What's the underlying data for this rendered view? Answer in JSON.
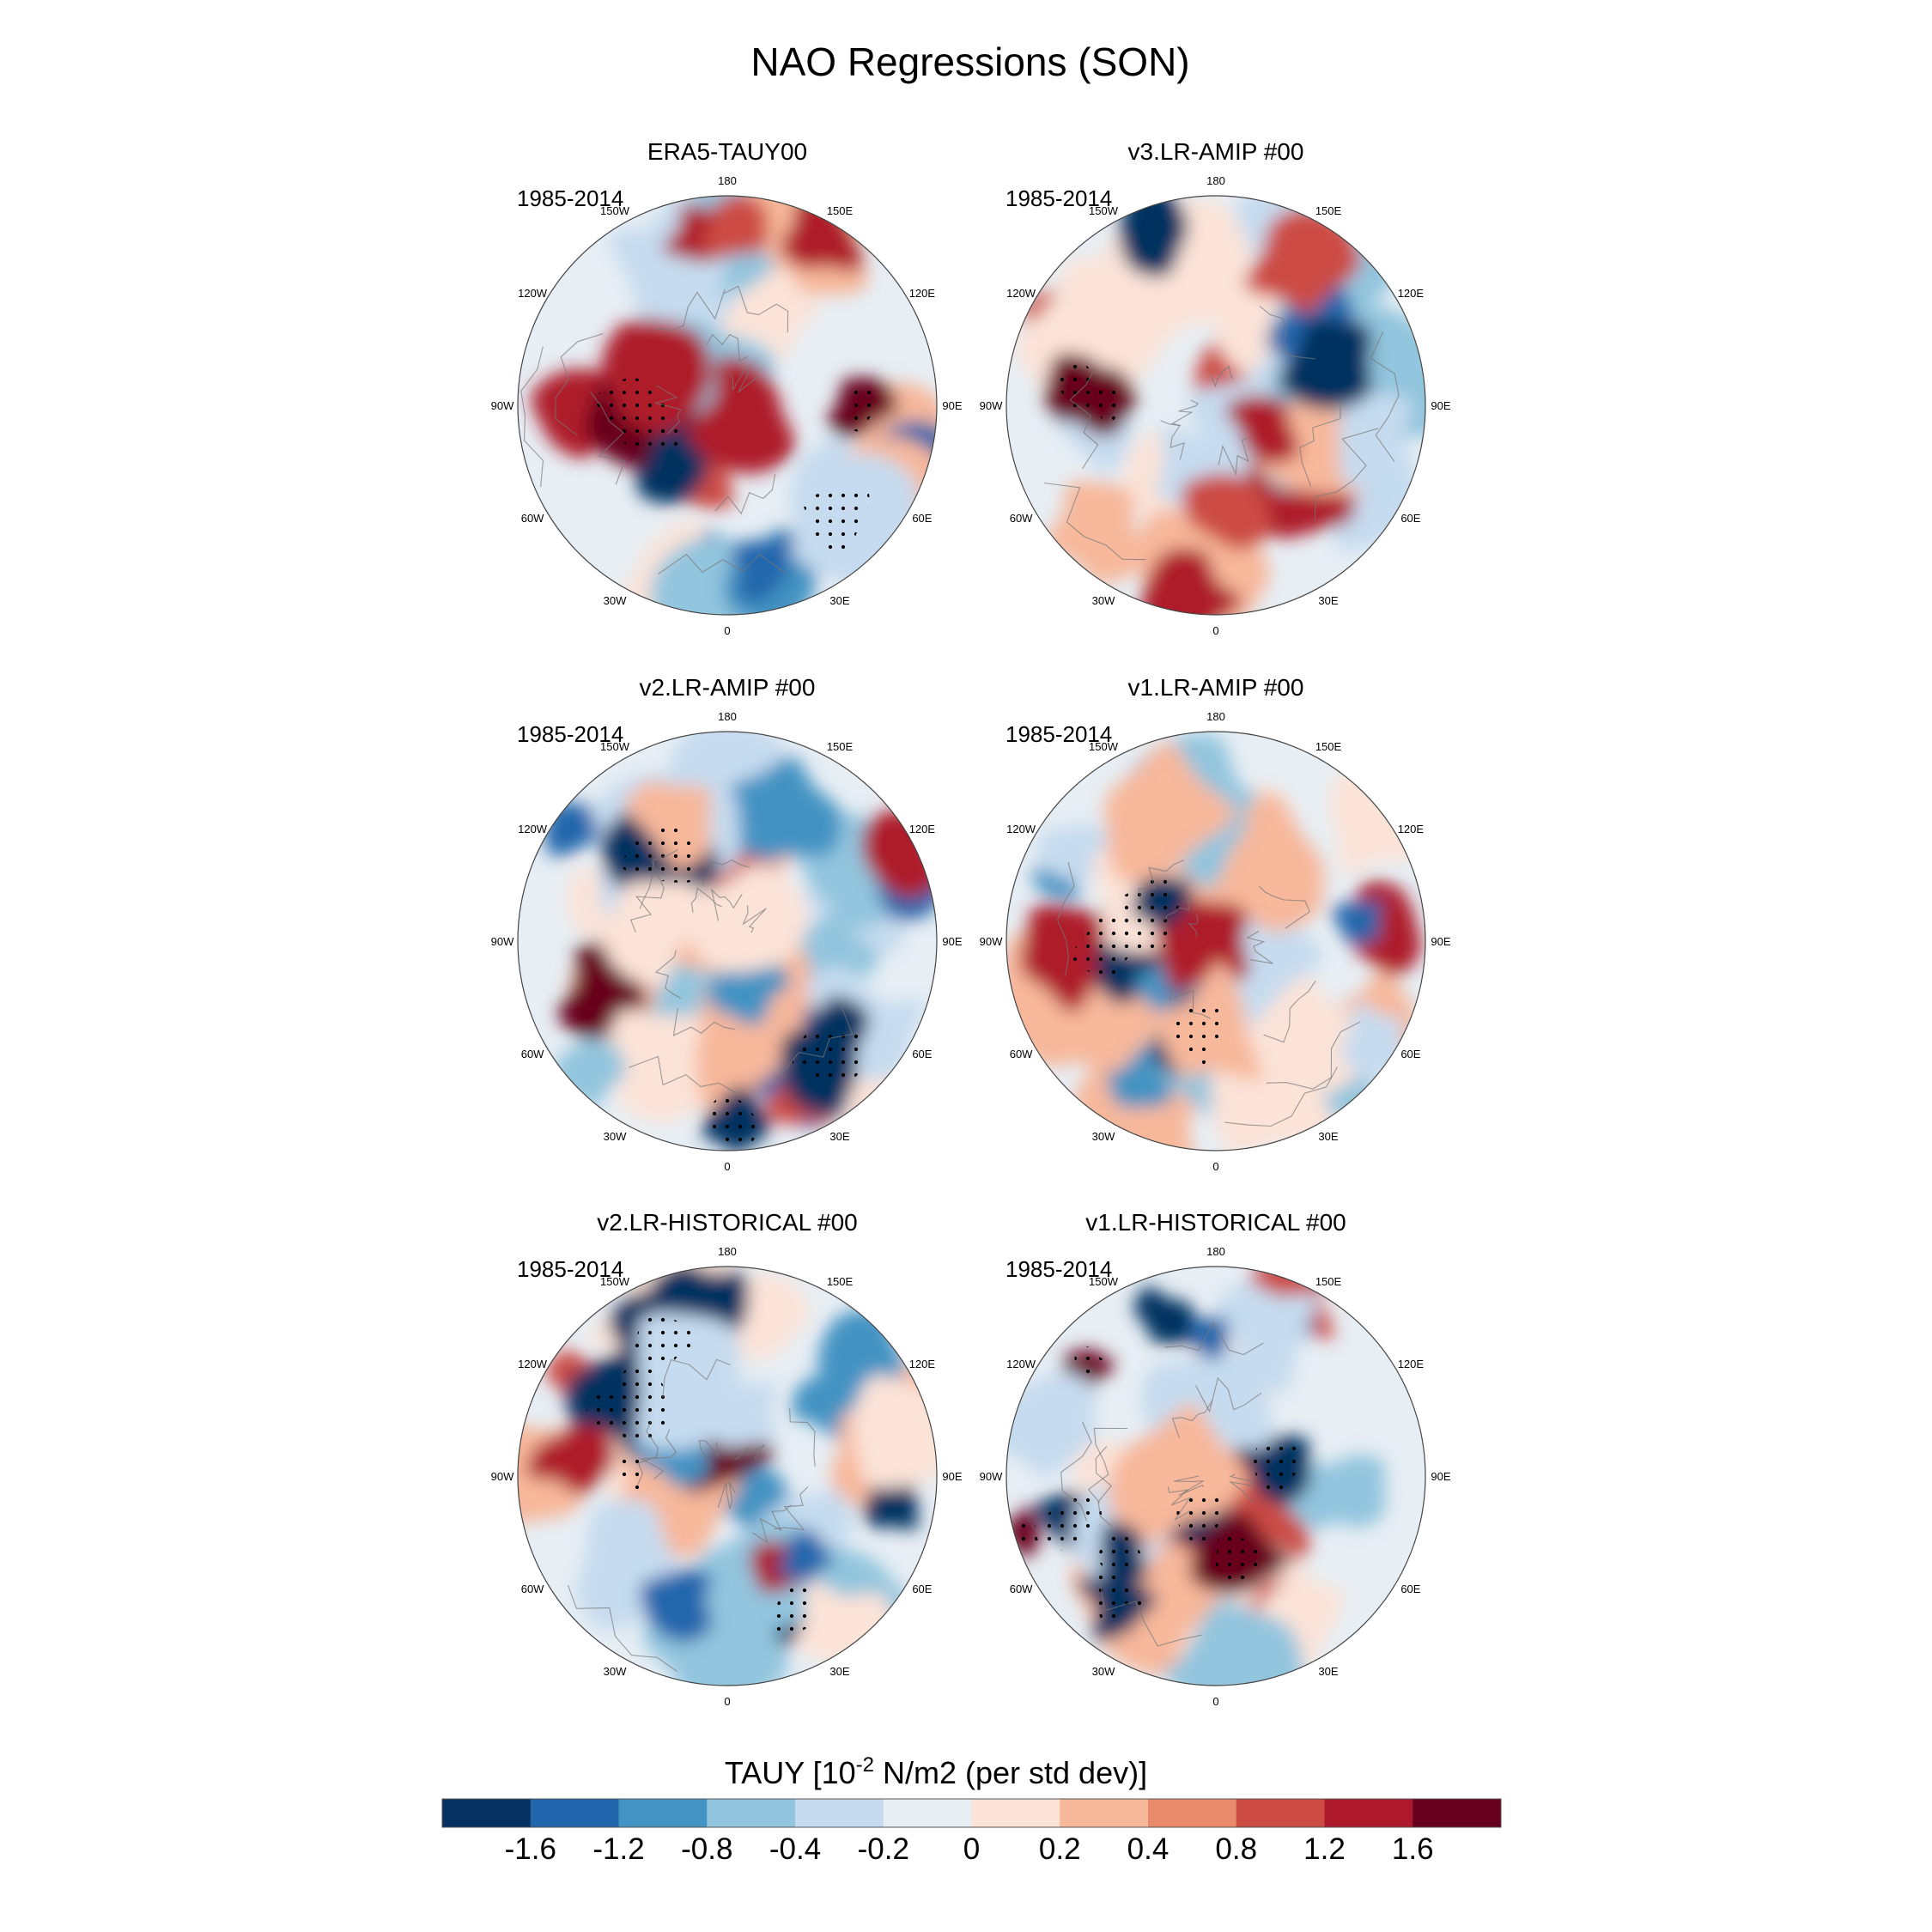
{
  "figure": {
    "title": "NAO Regressions (SON)",
    "colorbar_label_prefix": "TAUY [10",
    "colorbar_label_exp": "-2",
    "colorbar_label_suffix": " N/m2 (per std dev)]"
  },
  "chart_data": {
    "type": "polar-stereographic contour maps",
    "variable": "TAUY",
    "units": "10^-2 N/m2 (per std dev)",
    "season": "SON",
    "colorbar": {
      "ticks": [
        "-1.6",
        "-1.2",
        "-0.8",
        "-0.4",
        "-0.2",
        "0",
        "0.2",
        "0.4",
        "0.8",
        "1.2",
        "1.6"
      ],
      "colors": [
        "#053061",
        "#2166ac",
        "#4393c3",
        "#92c5de",
        "#c6dbef",
        "#e7eef4",
        "#fbe3d8",
        "#f7b89b",
        "#e98a6c",
        "#cc4c44",
        "#ae1a2b",
        "#67001f"
      ]
    },
    "longitude_labels": [
      "180",
      "150E",
      "120E",
      "90E",
      "60E",
      "30E",
      "0",
      "30W",
      "60W",
      "90W",
      "120W",
      "150W"
    ],
    "panels": [
      {
        "title": "ERA5-TAUY00",
        "years": "1985-2014"
      },
      {
        "title": "v3.LR-AMIP  #00",
        "years": "1985-2014"
      },
      {
        "title": "v2.LR-AMIP  #00",
        "years": "1985-2014"
      },
      {
        "title": "v1.LR-AMIP  #00",
        "years": "1985-2014"
      },
      {
        "title": "v2.LR-HISTORICAL  #00",
        "years": "1985-2014"
      },
      {
        "title": "v1.LR-HISTORICAL  #00",
        "years": "1985-2014"
      }
    ]
  }
}
